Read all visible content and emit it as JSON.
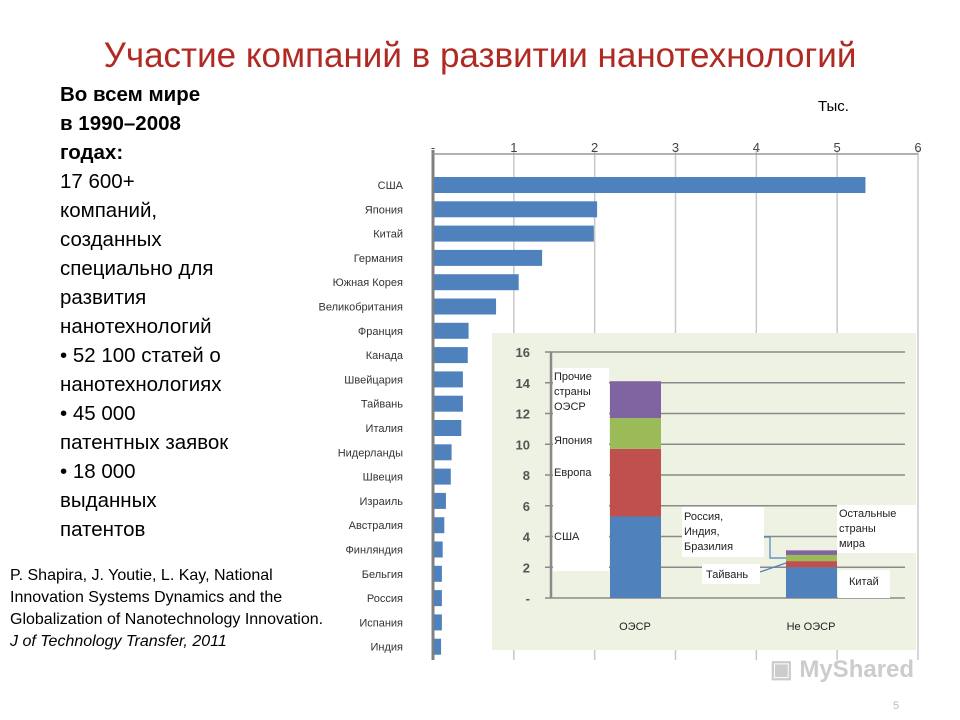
{
  "title": "Участие компаний в развитии нанотехнологий",
  "left_text": {
    "heading_lines": [
      "Во всем мире",
      "в 1990–2008",
      "годах:"
    ],
    "body_lines": [
      "17 600+",
      "компаний,",
      "созданных",
      "специально для",
      "развития",
      "нанотехнологий",
      "• 52 100 статей о",
      "нанотехнологиях",
      "• 45 000",
      "патентных заявок",
      "• 18 000",
      "выданных",
      "патентов"
    ]
  },
  "citation": {
    "plain": "P. Shapira, J. Youtie, L. Kay, National Innovation Systems Dynamics and the Globalization of Nanotechnology Innovation.",
    "italic": "J of Technology Transfer, 2011"
  },
  "watermark": "MyShared",
  "page_number": "5",
  "colors": {
    "title": "#b02a23",
    "bar": "#4f81bd",
    "usa": "#4f81bd",
    "europe": "#c0504d",
    "japan": "#9bbb59",
    "other": "#8064a2",
    "inset_bg": "#eef2e2"
  },
  "chart_data": [
    {
      "type": "bar",
      "orientation": "horizontal",
      "unit_label": "Тыс.",
      "xlim": [
        0,
        6
      ],
      "x_ticks": [
        "-",
        "1",
        "2",
        "3",
        "4",
        "5",
        "6"
      ],
      "grid": true,
      "categories": [
        "США",
        "Япония",
        "Китай",
        "Германия",
        "Южная Корея",
        "Великобритания",
        "Франция",
        "Канада",
        "Швейцария",
        "Тайвань",
        "Италия",
        "Нидерланды",
        "Швеция",
        "Израиль",
        "Австралия",
        "Финляндия",
        "Бельгия",
        "Россия",
        "Испания",
        "Индия"
      ],
      "values": [
        5.35,
        2.03,
        1.99,
        1.35,
        1.06,
        0.78,
        0.44,
        0.43,
        0.37,
        0.37,
        0.35,
        0.23,
        0.22,
        0.16,
        0.14,
        0.12,
        0.11,
        0.11,
        0.11,
        0.1
      ]
    },
    {
      "type": "bar",
      "stacked": true,
      "ylim": [
        0,
        16
      ],
      "y_ticks": [
        "-",
        "2",
        "4",
        "6",
        "8",
        "10",
        "12",
        "14",
        "16"
      ],
      "grid": true,
      "categories": [
        "ОЭСР",
        "Не ОЭСР"
      ],
      "stacks": [
        {
          "category": "ОЭСР",
          "segments": [
            {
              "name": "США",
              "value": 5.3,
              "color": "#4f81bd"
            },
            {
              "name": "Европа",
              "value": 4.4,
              "color": "#c0504d"
            },
            {
              "name": "Япония",
              "value": 2.0,
              "color": "#9bbb59"
            },
            {
              "name": "Прочие страны ОЭСР",
              "value": 2.4,
              "color": "#8064a2"
            }
          ]
        },
        {
          "category": "Не ОЭСР",
          "segments": [
            {
              "name": "Китай",
              "value": 2.0,
              "color": "#4f81bd"
            },
            {
              "name": "Россия, Индия, Бразилия",
              "value": 0.4,
              "color": "#c0504d"
            },
            {
              "name": "Тайвань",
              "value": 0.4,
              "color": "#9bbb59"
            },
            {
              "name": "Остальные страны мира",
              "value": 0.3,
              "color": "#8064a2"
            }
          ]
        }
      ]
    }
  ]
}
